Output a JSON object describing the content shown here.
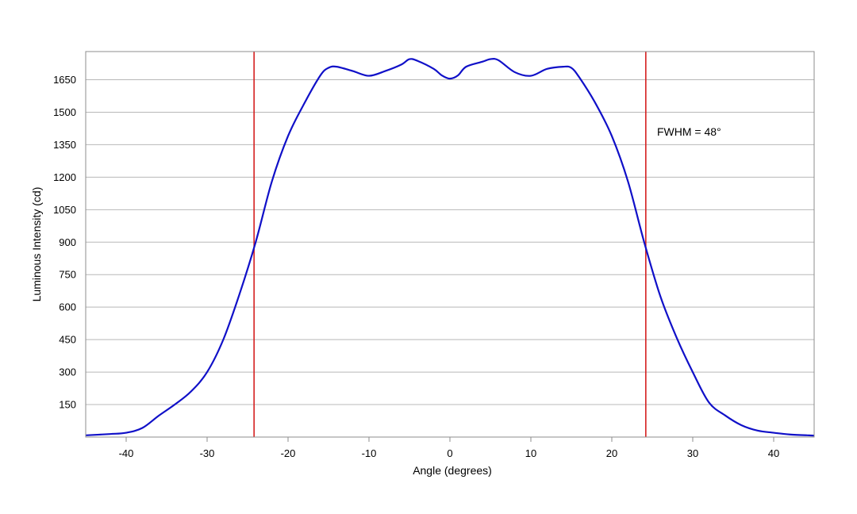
{
  "chart_data": {
    "type": "line",
    "title": "",
    "xlabel": "Angle (degrees)",
    "ylabel": "Luminous Intensity (cd)",
    "xlim": [
      -45,
      45
    ],
    "ylim": [
      0,
      1780
    ],
    "x_ticks": [
      -40,
      -30,
      -20,
      -10,
      0,
      10,
      20,
      30,
      40
    ],
    "y_ticks": [
      150,
      300,
      450,
      600,
      750,
      900,
      1050,
      1200,
      1350,
      1500,
      1650
    ],
    "grid": "horizontal",
    "legend": "none",
    "annotation": "FWHM = 48°",
    "colors": {
      "curve": "#1010c8",
      "fwhm_lines": "#d42020",
      "grid": "#b8b8b8",
      "frame": "#8c8c8c"
    },
    "vertical_lines": [
      -24.2,
      24.2
    ],
    "series": [
      {
        "x": [
          -45,
          -42,
          -40,
          -38,
          -36,
          -34,
          -32,
          -30,
          -28,
          -26,
          -24,
          -22,
          -20,
          -18,
          -16,
          -15,
          -14,
          -12,
          -10,
          -8,
          -6,
          -5,
          -4,
          -2,
          -1,
          0,
          1,
          2,
          4,
          5,
          6,
          8,
          10,
          12,
          14,
          15,
          16,
          18,
          20,
          22,
          24,
          26,
          28,
          30,
          32,
          34,
          36,
          38,
          40,
          42,
          45
        ],
        "values": [
          8,
          14,
          20,
          42,
          98,
          150,
          210,
          300,
          450,
          660,
          900,
          1180,
          1390,
          1540,
          1670,
          1705,
          1710,
          1690,
          1668,
          1690,
          1720,
          1745,
          1737,
          1700,
          1670,
          1655,
          1670,
          1710,
          1733,
          1745,
          1740,
          1685,
          1668,
          1700,
          1710,
          1705,
          1660,
          1540,
          1390,
          1180,
          900,
          650,
          460,
          300,
          160,
          100,
          55,
          30,
          20,
          12,
          7
        ]
      }
    ]
  }
}
